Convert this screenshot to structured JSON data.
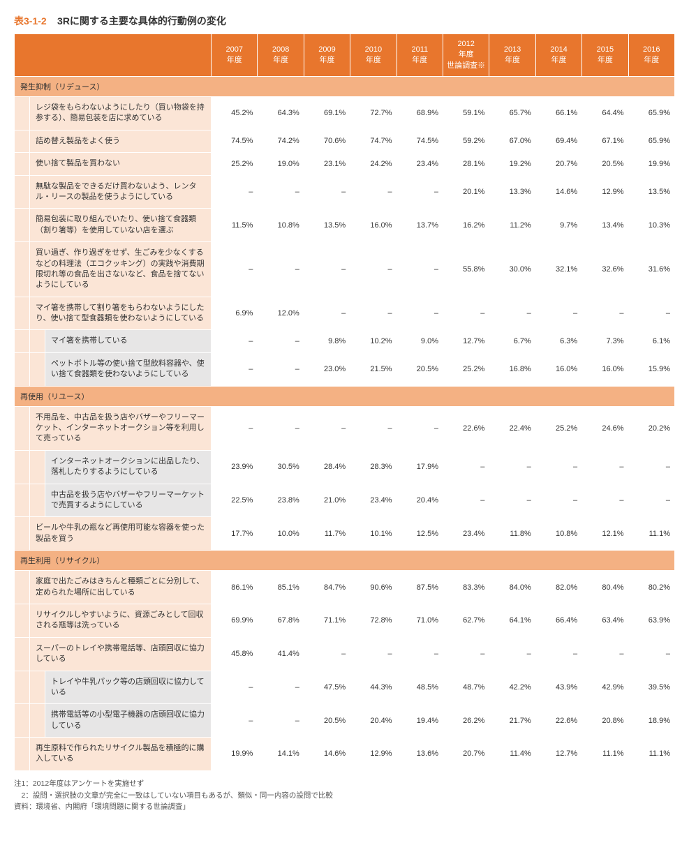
{
  "title_number": "表3-1-2",
  "title_text": "3Rに関する主要な具体的行動例の変化",
  "years": [
    "2007\n年度",
    "2008\n年度",
    "2009\n年度",
    "2010\n年度",
    "2011\n年度",
    "2012\n年度\n世論調査※",
    "2013\n年度",
    "2014\n年度",
    "2015\n年度",
    "2016\n年度"
  ],
  "sections": [
    {
      "name": "発生抑制（リデュース）",
      "rows": [
        {
          "label": "レジ袋をもらわないようにしたり（買い物袋を持参する）、簡易包装を店に求めている",
          "vals": [
            "45.2%",
            "64.3%",
            "69.1%",
            "72.7%",
            "68.9%",
            "59.1%",
            "65.7%",
            "66.1%",
            "64.4%",
            "65.9%"
          ]
        },
        {
          "label": "詰め替え製品をよく使う",
          "vals": [
            "74.5%",
            "74.2%",
            "70.6%",
            "74.7%",
            "74.5%",
            "59.2%",
            "67.0%",
            "69.4%",
            "67.1%",
            "65.9%"
          ]
        },
        {
          "label": "使い捨て製品を買わない",
          "vals": [
            "25.2%",
            "19.0%",
            "23.1%",
            "24.2%",
            "23.4%",
            "28.1%",
            "19.2%",
            "20.7%",
            "20.5%",
            "19.9%"
          ]
        },
        {
          "label": "無駄な製品をできるだけ買わないよう、レンタル・リースの製品を使うようにしている",
          "vals": [
            "–",
            "–",
            "–",
            "–",
            "–",
            "20.1%",
            "13.3%",
            "14.6%",
            "12.9%",
            "13.5%"
          ]
        },
        {
          "label": "簡易包装に取り組んでいたり、使い捨て食器類（割り箸等）を使用していない店を選ぶ",
          "vals": [
            "11.5%",
            "10.8%",
            "13.5%",
            "16.0%",
            "13.7%",
            "16.2%",
            "11.2%",
            "9.7%",
            "13.4%",
            "10.3%"
          ]
        },
        {
          "label": "買い過ぎ、作り過ぎをせず、生ごみを少なくするなどの料理法（エコクッキング）の実践や消費期限切れ等の食品を出さないなど、食品を捨てないようにしている",
          "vals": [
            "–",
            "–",
            "–",
            "–",
            "–",
            "55.8%",
            "30.0%",
            "32.1%",
            "32.6%",
            "31.6%"
          ]
        },
        {
          "label": "マイ箸を携帯して割り箸をもらわないようにしたり、使い捨て型食器類を使わないようにしている",
          "vals": [
            "6.9%",
            "12.0%",
            "–",
            "–",
            "–",
            "–",
            "–",
            "–",
            "–",
            "–"
          ]
        },
        {
          "sub": true,
          "label": "マイ箸を携帯している",
          "vals": [
            "–",
            "–",
            "9.8%",
            "10.2%",
            "9.0%",
            "12.7%",
            "6.7%",
            "6.3%",
            "7.3%",
            "6.1%"
          ]
        },
        {
          "sub": true,
          "label": "ペットボトル等の使い捨て型飲料容器や、使い捨て食器類を使わないようにしている",
          "vals": [
            "–",
            "–",
            "23.0%",
            "21.5%",
            "20.5%",
            "25.2%",
            "16.8%",
            "16.0%",
            "16.0%",
            "15.9%"
          ]
        }
      ]
    },
    {
      "name": "再使用（リユース）",
      "rows": [
        {
          "label": "不用品を、中古品を扱う店やバザーやフリーマーケット、インターネットオークション等を利用して売っている",
          "vals": [
            "–",
            "–",
            "–",
            "–",
            "–",
            "22.6%",
            "22.4%",
            "25.2%",
            "24.6%",
            "20.2%"
          ]
        },
        {
          "sub": true,
          "label": "インターネットオークションに出品したり、落札したりするようにしている",
          "vals": [
            "23.9%",
            "30.5%",
            "28.4%",
            "28.3%",
            "17.9%",
            "–",
            "–",
            "–",
            "–",
            "–"
          ]
        },
        {
          "sub": true,
          "label": "中古品を扱う店やバザーやフリーマーケットで売買するようにしている",
          "vals": [
            "22.5%",
            "23.8%",
            "21.0%",
            "23.4%",
            "20.4%",
            "–",
            "–",
            "–",
            "–",
            "–"
          ]
        },
        {
          "label": "ビールや牛乳の瓶など再使用可能な容器を使った製品を買う",
          "vals": [
            "17.7%",
            "10.0%",
            "11.7%",
            "10.1%",
            "12.5%",
            "23.4%",
            "11.8%",
            "10.8%",
            "12.1%",
            "11.1%"
          ]
        }
      ]
    },
    {
      "name": "再生利用（リサイクル）",
      "rows": [
        {
          "label": "家庭で出たごみはきちんと種類ごとに分別して、定められた場所に出している",
          "vals": [
            "86.1%",
            "85.1%",
            "84.7%",
            "90.6%",
            "87.5%",
            "83.3%",
            "84.0%",
            "82.0%",
            "80.4%",
            "80.2%"
          ]
        },
        {
          "label": "リサイクルしやすいように、資源ごみとして回収される瓶等は洗っている",
          "vals": [
            "69.9%",
            "67.8%",
            "71.1%",
            "72.8%",
            "71.0%",
            "62.7%",
            "64.1%",
            "66.4%",
            "63.4%",
            "63.9%"
          ]
        },
        {
          "label": "スーパーのトレイや携帯電話等、店頭回収に協力している",
          "vals": [
            "45.8%",
            "41.4%",
            "–",
            "–",
            "–",
            "–",
            "–",
            "–",
            "–",
            "–"
          ]
        },
        {
          "sub": true,
          "label": "トレイや牛乳パック等の店頭回収に協力している",
          "vals": [
            "–",
            "–",
            "47.5%",
            "44.3%",
            "48.5%",
            "48.7%",
            "42.2%",
            "43.9%",
            "42.9%",
            "39.5%"
          ]
        },
        {
          "sub": true,
          "label": "携帯電話等の小型電子機器の店頭回収に協力している",
          "vals": [
            "–",
            "–",
            "20.5%",
            "20.4%",
            "19.4%",
            "26.2%",
            "21.7%",
            "22.6%",
            "20.8%",
            "18.9%"
          ]
        },
        {
          "label": "再生原料で作られたリサイクル製品を積極的に購入している",
          "vals": [
            "19.9%",
            "14.1%",
            "14.6%",
            "12.9%",
            "13.6%",
            "20.7%",
            "11.4%",
            "12.7%",
            "11.1%",
            "11.1%"
          ]
        }
      ]
    }
  ],
  "notes": [
    "注1：2012年度はアンケートを実施せず",
    "　2：設問・選択肢の文章が完全に一致はしていない項目もあるが、類似・同一内容の設問で比較",
    "資料：環境省、内閣府「環境問題に関する世論調査」"
  ]
}
